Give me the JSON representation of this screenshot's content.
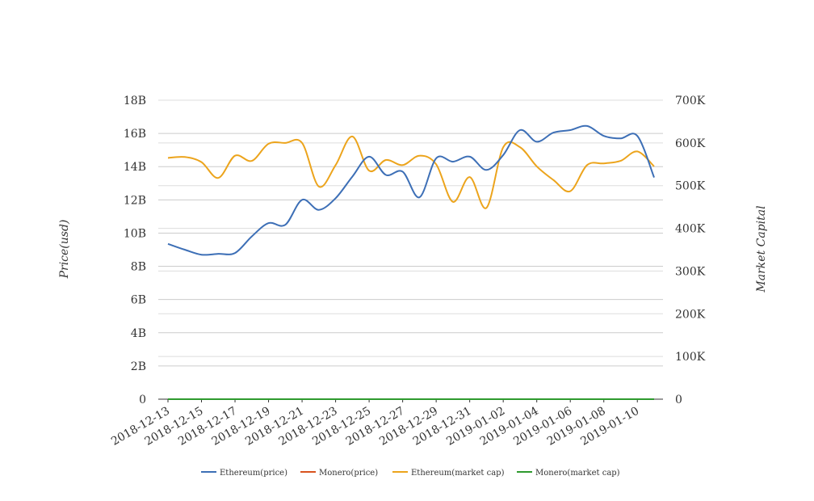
{
  "chart_data": {
    "type": "line",
    "title": "",
    "x_type": "date",
    "x_ticks": [
      "2018-12-13",
      "2018-12-15",
      "2018-12-17",
      "2018-12-19",
      "2018-12-21",
      "2018-12-23",
      "2018-12-25",
      "2018-12-27",
      "2018-12-29",
      "2018-12-31",
      "2019-01-02",
      "2019-01-04",
      "2019-01-06",
      "2019-01-08",
      "2019-01-10"
    ],
    "y_left": {
      "label": "Price(usd)",
      "range": [
        0,
        18000000000
      ],
      "ticks": [
        0,
        2000000000,
        4000000000,
        6000000000,
        8000000000,
        10000000000,
        12000000000,
        14000000000,
        16000000000,
        18000000000
      ],
      "tick_labels": [
        "0",
        "2B",
        "4B",
        "6B",
        "8B",
        "10B",
        "12B",
        "14B",
        "16B",
        "18B"
      ]
    },
    "y_right": {
      "label": "Market Capital",
      "range": [
        0,
        700000
      ],
      "ticks": [
        0,
        100000,
        200000,
        300000,
        400000,
        500000,
        600000,
        700000
      ],
      "tick_labels": [
        "0",
        "100K",
        "200K",
        "300K",
        "400K",
        "500K",
        "600K",
        "700K"
      ]
    },
    "grid": true,
    "legend_position": "bottom",
    "x": [
      "2018-12-13",
      "2018-12-14",
      "2018-12-15",
      "2018-12-16",
      "2018-12-17",
      "2018-12-18",
      "2018-12-19",
      "2018-12-20",
      "2018-12-21",
      "2018-12-22",
      "2018-12-23",
      "2018-12-24",
      "2018-12-25",
      "2018-12-26",
      "2018-12-27",
      "2018-12-28",
      "2018-12-29",
      "2018-12-30",
      "2018-12-31",
      "2019-01-01",
      "2019-01-02",
      "2019-01-03",
      "2019-01-04",
      "2019-01-05",
      "2019-01-06",
      "2019-01-07",
      "2019-01-08",
      "2019-01-09",
      "2019-01-10",
      "2019-01-11"
    ],
    "series": [
      {
        "name": "Ethereum(price)",
        "axis": "left",
        "color": "#3d6fb6",
        "values": [
          9350000000,
          9000000000,
          8700000000,
          8750000000,
          8800000000,
          9800000000,
          10600000000,
          10500000000,
          12000000000,
          11400000000,
          12100000000,
          13400000000,
          14600000000,
          13500000000,
          13700000000,
          12150000000,
          14500000000,
          14300000000,
          14600000000,
          13800000000,
          14700000000,
          16200000000,
          15500000000,
          16050000000,
          16200000000,
          16450000000,
          15850000000,
          15700000000,
          15850000000,
          13350000000
        ]
      },
      {
        "name": "Monero(price)",
        "axis": "left",
        "color": "#d9531e",
        "values": [
          0,
          0,
          0,
          0,
          0,
          0,
          0,
          0,
          0,
          0,
          0,
          0,
          0,
          0,
          0,
          0,
          0,
          0,
          0,
          0,
          0,
          0,
          0,
          0,
          0,
          0,
          0,
          0,
          0,
          0
        ]
      },
      {
        "name": "Ethereum(market cap)",
        "axis": "right",
        "color": "#eca41c",
        "values": [
          565000,
          567000,
          555000,
          518000,
          570000,
          558000,
          598000,
          600000,
          600000,
          498000,
          548000,
          615000,
          535000,
          560000,
          548000,
          570000,
          550000,
          462000,
          520000,
          448000,
          590000,
          590000,
          545000,
          513000,
          487000,
          548000,
          552000,
          558000,
          580000,
          545000
        ]
      },
      {
        "name": "Monero(market cap)",
        "axis": "right",
        "color": "#2e9a2e",
        "values": [
          0,
          0,
          0,
          0,
          0,
          0,
          0,
          0,
          0,
          0,
          0,
          0,
          0,
          0,
          0,
          0,
          0,
          0,
          0,
          0,
          0,
          0,
          0,
          0,
          0,
          0,
          0,
          0,
          0,
          0
        ]
      }
    ]
  }
}
